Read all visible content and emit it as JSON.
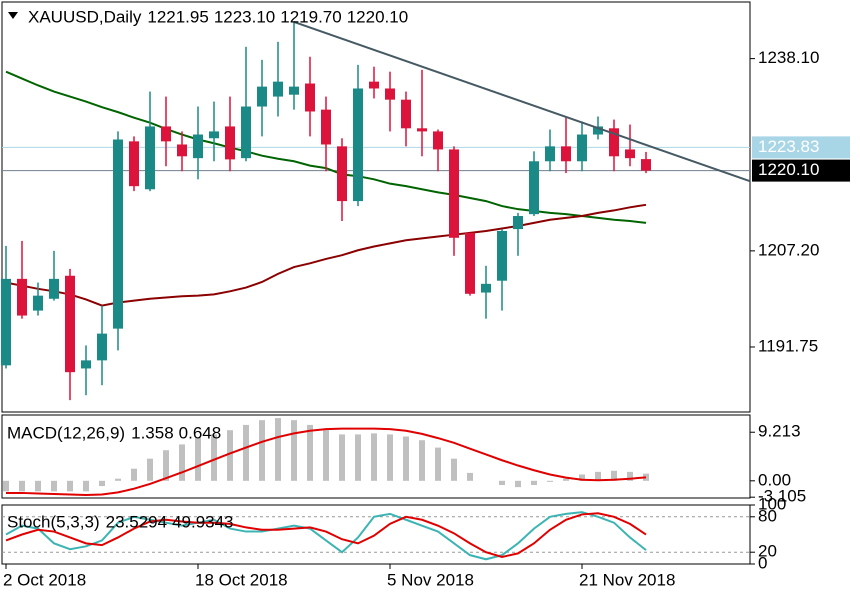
{
  "chart_data": [
    {
      "type": "candlestick",
      "title": "XAUUSD,Daily",
      "header_values": [
        {
          "value": 1221.95,
          "label": "1221.95"
        },
        {
          "value": 1223.1,
          "label": "1223.10"
        },
        {
          "value": 1219.7,
          "label": "1219.70"
        },
        {
          "value": 1220.1,
          "label": "1220.10"
        }
      ],
      "categories": [
        "2 Oct 2018",
        null,
        null,
        null,
        null,
        null,
        null,
        null,
        null,
        null,
        null,
        null,
        "18 Oct 2018",
        null,
        null,
        null,
        null,
        null,
        null,
        null,
        null,
        null,
        null,
        null,
        "5 Nov 2018",
        null,
        null,
        null,
        null,
        null,
        null,
        null,
        null,
        null,
        null,
        null,
        "21 Nov 2018",
        null,
        null,
        null,
        null
      ],
      "open": [
        1188.8,
        1202.7,
        1197.6,
        1199.5,
        1203.2,
        1188.3,
        1189.6,
        1194.7,
        1224.8,
        1217.1,
        1227.2,
        1224.3,
        1222.1,
        1225.3,
        1227.2,
        1222.1,
        1230.4,
        1232.0,
        1232.3,
        1234.1,
        1229.9,
        1224.0,
        1215.2,
        1234.4,
        1233.3,
        1231.5,
        1226.9,
        1226.4,
        1223.5,
        1210.1,
        1200.5,
        1202.4,
        1210.7,
        1213.1,
        1221.6,
        1224.0,
        1221.6,
        1225.9,
        1226.9,
        1223.5,
        1221.95
      ],
      "high": [
        1208.0,
        1208.8,
        1202.1,
        1207.2,
        1204.3,
        1192.0,
        1198.4,
        1226.4,
        1225.6,
        1232.8,
        1232.0,
        1226.4,
        1230.4,
        1231.2,
        1232.0,
        1240.0,
        1237.9,
        1240.8,
        1244.0,
        1238.4,
        1232.0,
        1225.3,
        1237.1,
        1236.8,
        1236.0,
        1232.8,
        1236.3,
        1226.7,
        1224.0,
        1210.1,
        1204.8,
        1210.7,
        1213.3,
        1223.2,
        1226.7,
        1228.8,
        1228.0,
        1228.8,
        1228.3,
        1227.5,
        1223.1
      ],
      "low": [
        1188.3,
        1196.3,
        1196.8,
        1199.2,
        1183.2,
        1184.0,
        1185.6,
        1191.2,
        1216.8,
        1216.8,
        1220.8,
        1220.0,
        1218.7,
        1221.6,
        1220.0,
        1221.6,
        1225.6,
        1228.8,
        1229.9,
        1225.6,
        1220.0,
        1212.0,
        1214.4,
        1231.7,
        1226.4,
        1224.0,
        1222.4,
        1220.0,
        1206.4,
        1200.0,
        1196.3,
        1197.6,
        1206.4,
        1212.8,
        1220.0,
        1219.7,
        1220.0,
        1225.1,
        1220.0,
        1220.8,
        1219.7
      ],
      "close": [
        1202.7,
        1196.8,
        1200.0,
        1202.7,
        1187.7,
        1189.6,
        1193.9,
        1225.1,
        1217.6,
        1227.2,
        1224.8,
        1222.4,
        1225.9,
        1226.4,
        1221.9,
        1230.4,
        1233.6,
        1234.4,
        1233.6,
        1229.6,
        1224.3,
        1215.2,
        1233.3,
        1233.3,
        1231.5,
        1226.9,
        1226.4,
        1223.5,
        1209.3,
        1200.3,
        1201.9,
        1210.4,
        1212.8,
        1221.6,
        1224.0,
        1221.6,
        1225.9,
        1227.2,
        1222.4,
        1222.1,
        1220.1
      ],
      "up_color": "#1b8a86",
      "down_color": "#dc143c",
      "moving_averages": [
        {
          "color": "#006400",
          "values": [
            1236.0,
            1234.9,
            1233.8,
            1232.8,
            1232.0,
            1231.2,
            1230.3,
            1229.5,
            1228.6,
            1227.8,
            1226.8,
            1225.9,
            1225.1,
            1224.5,
            1223.8,
            1223.2,
            1222.5,
            1222.0,
            1221.6,
            1220.9,
            1220.5,
            1219.5,
            1219.2,
            1218.7,
            1218.0,
            1217.6,
            1217.1,
            1216.6,
            1216.2,
            1215.7,
            1215.2,
            1214.4,
            1213.9,
            1213.6,
            1213.3,
            1213.1,
            1212.8,
            1212.5,
            1212.2,
            1212.0,
            1211.7
          ]
        },
        {
          "color": "#8b0000",
          "values": [
            1202.1,
            1201.6,
            1201.1,
            1200.7,
            1200.2,
            1199.4,
            1198.4,
            1198.9,
            1199.2,
            1199.5,
            1199.7,
            1199.9,
            1200.0,
            1200.2,
            1200.7,
            1201.3,
            1202.2,
            1203.5,
            1204.6,
            1205.2,
            1205.9,
            1206.5,
            1207.3,
            1207.9,
            1208.4,
            1208.9,
            1209.2,
            1209.5,
            1209.8,
            1210.1,
            1210.4,
            1210.8,
            1211.2,
            1211.7,
            1212.2,
            1212.5,
            1212.8,
            1213.3,
            1213.7,
            1214.2,
            1214.6
          ]
        }
      ],
      "trendline": {
        "color": "#465a64",
        "x": [
          18,
          46.5
        ],
        "y": [
          1244.0,
          1218.4
        ]
      },
      "price_lines": [
        {
          "value": 1223.83,
          "label": "1223.83",
          "color": "#add8e6",
          "box": "#a9d6e6"
        },
        {
          "value": 1220.1,
          "label": "1220.10",
          "color": "#708090",
          "box": "#000000"
        }
      ],
      "ylim": [
        1181.3,
        1247.2
      ],
      "yticks": [
        {
          "value": 1238.1,
          "label": "1238.10"
        },
        {
          "value": 1207.2,
          "label": "1207.20"
        },
        {
          "value": 1191.75,
          "label": "1191.75"
        }
      ]
    },
    {
      "type": "macd",
      "title": "MACD(12,26,9)",
      "header_values": [
        1.358,
        0.648
      ],
      "series": [
        {
          "type": "bar",
          "color": "#c0c0c0",
          "values": [
            -2,
            -2,
            -2,
            -2,
            -2,
            -2,
            -1,
            0.4,
            2.3,
            4.2,
            5.8,
            6.9,
            8.1,
            8.8,
            9.6,
            10.6,
            11.5,
            11.9,
            11.5,
            10.6,
            9.6,
            8.8,
            8.8,
            9.0,
            8.8,
            8.4,
            7.7,
            6.3,
            4.2,
            1.5,
            0,
            -0.8,
            -1.2,
            -0.8,
            -0.2,
            0.4,
            1.2,
            1.7,
            1.9,
            1.7,
            1.358
          ]
        },
        {
          "type": "line",
          "color": "#e00000",
          "values": [
            -2.3,
            -2.3,
            -2.4,
            -2.5,
            -2.6,
            -2.7,
            -2.6,
            -2.2,
            -1.5,
            -0.6,
            0.5,
            1.6,
            2.8,
            4.0,
            5.2,
            6.3,
            7.4,
            8.3,
            9.0,
            9.5,
            9.8,
            9.9,
            9.9,
            9.9,
            9.8,
            9.5,
            8.9,
            8.1,
            7.2,
            6.1,
            5.0,
            3.9,
            2.9,
            2.0,
            1.2,
            0.6,
            0.2,
            0.1,
            0.2,
            0.4,
            0.648
          ]
        }
      ],
      "ylim": [
        -3.26,
        12.48
      ],
      "yticks": [
        {
          "value": 9.213,
          "label": "9.213"
        },
        {
          "value": 0,
          "label": "0.00"
        },
        {
          "value": -3.105,
          "label": "-3.105"
        }
      ]
    },
    {
      "type": "stochastic",
      "title": "Stoch(5,3,3)",
      "header_values": [
        23.5294,
        49.9343
      ],
      "series": [
        {
          "color": "#3cb4b4",
          "values": [
            50,
            65,
            60,
            35,
            25,
            30,
            40,
            70,
            80,
            75,
            70,
            65,
            70,
            75,
            60,
            55,
            55,
            60,
            65,
            60,
            40,
            20,
            45,
            80,
            85,
            75,
            65,
            55,
            35,
            15,
            8,
            15,
            35,
            60,
            80,
            85,
            88,
            80,
            70,
            45,
            23.5294
          ]
        },
        {
          "color": "#e00000",
          "values": [
            40,
            50,
            58,
            55,
            45,
            35,
            32,
            45,
            60,
            72,
            75,
            72,
            70,
            70,
            68,
            62,
            58,
            58,
            60,
            62,
            55,
            42,
            35,
            48,
            68,
            80,
            75,
            65,
            52,
            35,
            20,
            12,
            18,
            35,
            58,
            75,
            84,
            86,
            80,
            68,
            49.9343
          ]
        }
      ],
      "levels": [
        80,
        20
      ],
      "ylim": [
        0,
        100
      ],
      "yticks": [
        100,
        80,
        20,
        0
      ]
    }
  ]
}
